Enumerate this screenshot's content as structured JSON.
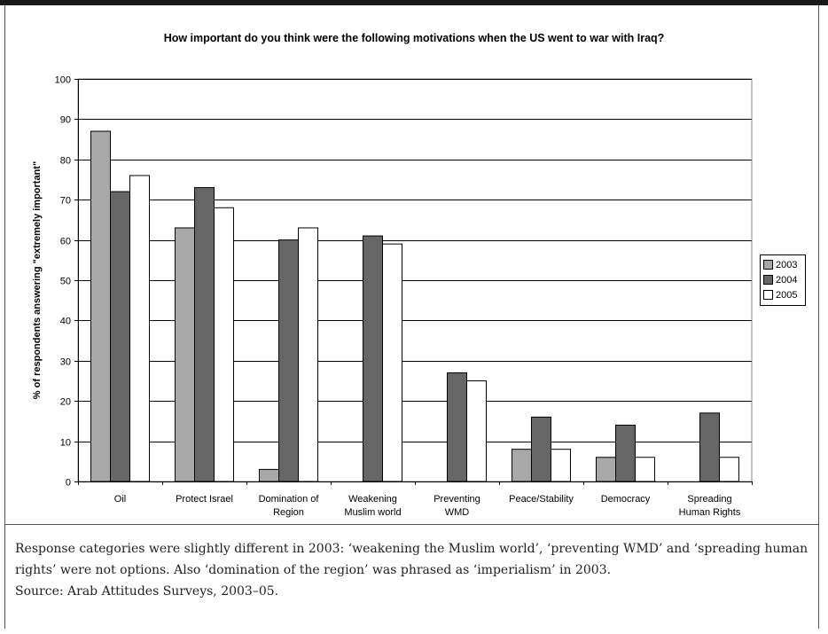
{
  "chart_data": {
    "type": "bar",
    "title": "How important do you think were the following motivations when the US went to war with Iraq?",
    "ylabel": "% of respondents answering \"extremely important\"",
    "xlabel": "",
    "ylim": [
      0,
      100
    ],
    "yticks": [
      "0",
      "10",
      "20",
      "30",
      "40",
      "50",
      "60",
      "70",
      "80",
      "90",
      "100"
    ],
    "grid": true,
    "legend_position": "right",
    "categories": [
      [
        "Oil"
      ],
      [
        "Protect Israel"
      ],
      [
        "Domination of",
        "Region"
      ],
      [
        "Weakening",
        "Muslim world"
      ],
      [
        "Preventing",
        "WMD"
      ],
      [
        "Peace/Stability"
      ],
      [
        "Democracy"
      ],
      [
        "Spreading",
        "Human Rights"
      ]
    ],
    "series": [
      {
        "name": "2003",
        "color": "#a8a8a8",
        "values": [
          87,
          63,
          3,
          null,
          null,
          8,
          6,
          null
        ]
      },
      {
        "name": "2004",
        "color": "#666666",
        "values": [
          72,
          73,
          60,
          61,
          27,
          16,
          14,
          17
        ]
      },
      {
        "name": "2005",
        "color": "#ffffff",
        "values": [
          76,
          68,
          63,
          59,
          25,
          8,
          6,
          6
        ]
      }
    ]
  },
  "note": {
    "text": "Response categories were slightly different in 2003: ‘weakening the Muslim world’, ‘preventing WMD’ and ‘spreading human rights’ were not options. Also ‘domination of the region’ was phrased as ‘imperialism’ in 2003.",
    "source": "Source: Arab Attitudes Surveys, 2003–05."
  }
}
